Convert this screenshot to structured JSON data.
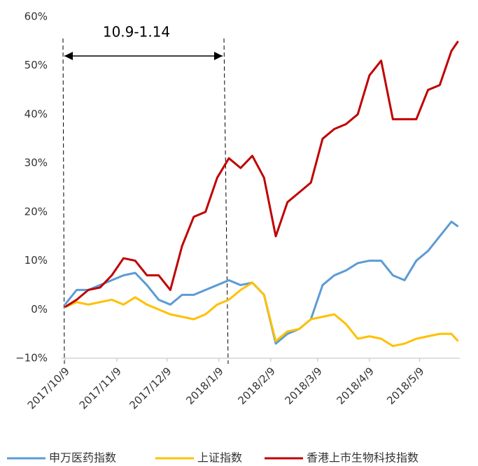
{
  "chart_data": {
    "type": "line",
    "annotation": "10.9-1.14",
    "x": [
      "2017/10/9",
      "2017/10/16",
      "2017/10/23",
      "2017/10/30",
      "2017/11/6",
      "2017/11/13",
      "2017/11/20",
      "2017/11/27",
      "2017/12/4",
      "2017/12/11",
      "2017/12/18",
      "2017/12/25",
      "2018/1/1",
      "2018/1/8",
      "2018/1/15",
      "2018/1/22",
      "2018/1/29",
      "2018/2/5",
      "2018/2/12",
      "2018/2/19",
      "2018/2/26",
      "2018/3/5",
      "2018/3/12",
      "2018/3/19",
      "2018/3/26",
      "2018/4/2",
      "2018/4/9",
      "2018/4/16",
      "2018/4/23",
      "2018/4/30",
      "2018/5/7",
      "2018/5/14",
      "2018/5/21",
      "2018/5/28",
      "2018/6/1"
    ],
    "series": [
      {
        "name": "申万医药指数",
        "color": "#5b9bd5",
        "values": [
          1,
          4,
          4,
          5,
          6,
          7,
          7.5,
          5,
          2,
          1,
          3,
          3,
          4,
          5,
          6,
          5,
          5.5,
          3,
          -7,
          -5,
          -4,
          -2,
          5,
          7,
          8,
          9.5,
          10,
          10,
          7,
          6,
          10,
          12,
          15,
          18,
          17
        ]
      },
      {
        "name": "上证指数",
        "color": "#ffc000",
        "values": [
          0.5,
          1.5,
          1,
          1.5,
          2,
          1,
          2.5,
          1,
          0,
          -1,
          -1.5,
          -2,
          -1,
          1,
          2,
          4,
          5.5,
          3,
          -6.5,
          -4.5,
          -4,
          -2,
          -1.5,
          -1,
          -3,
          -6,
          -5.5,
          -6,
          -7.5,
          -7,
          -6,
          -5.5,
          -5,
          -5,
          -6.5
        ]
      },
      {
        "name": "香港上市生物科技指数",
        "color": "#c00000",
        "values": [
          0.5,
          2,
          4,
          4.5,
          7,
          10.5,
          10,
          7,
          7,
          4,
          13,
          19,
          20,
          27,
          31,
          29,
          31.5,
          27,
          15,
          22,
          24,
          26,
          35,
          37,
          38,
          40,
          48,
          51,
          39,
          39,
          39,
          45,
          46,
          53,
          55
        ]
      }
    ],
    "xlim": [
      "2017/10/7",
      "2018/6/2"
    ],
    "xticks": [
      "2017/10/9",
      "2017/11/9",
      "2017/12/9",
      "2018/1/9",
      "2018/2/9",
      "2018/3/9",
      "2018/4/9",
      "2018/5/9"
    ],
    "ylim": [
      -10,
      60
    ],
    "yticks": [
      {
        "value": -10,
        "label": "−10%"
      },
      {
        "value": 0,
        "label": "0%"
      },
      {
        "value": 10,
        "label": "10%"
      },
      {
        "value": 20,
        "label": "20%"
      },
      {
        "value": 30,
        "label": "30%"
      },
      {
        "value": 40,
        "label": "40%"
      },
      {
        "value": 50,
        "label": "50%"
      },
      {
        "value": 60,
        "label": "60%"
      }
    ],
    "legend": "bottom"
  }
}
